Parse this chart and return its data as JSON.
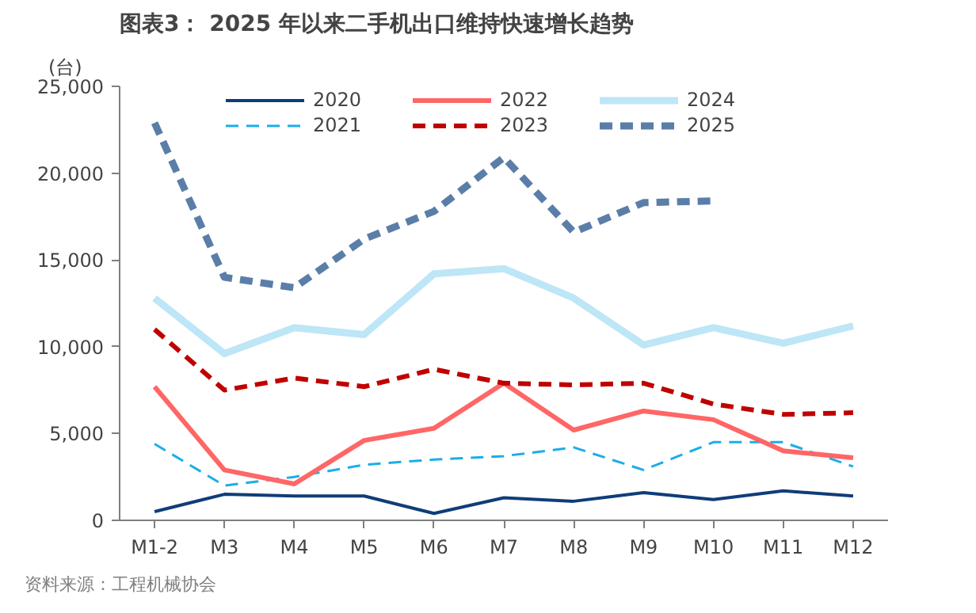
{
  "chart_data": {
    "type": "line",
    "title": "图表3： 2025 年以来二手机出口维持快速增长趋势",
    "ylabel": "(台)",
    "categories": [
      "M1-2",
      "M3",
      "M4",
      "M5",
      "M6",
      "M7",
      "M8",
      "M9",
      "M10",
      "M11",
      "M12"
    ],
    "ylim": [
      0,
      25000
    ],
    "yticks": [
      {
        "value": 0,
        "label": "0"
      },
      {
        "value": 5000,
        "label": "5,000"
      },
      {
        "value": 10000,
        "label": "10,000"
      },
      {
        "value": 15000,
        "label": "15,000"
      },
      {
        "value": 20000,
        "label": "20,000"
      },
      {
        "value": 25000,
        "label": "25,000"
      }
    ],
    "grid": false,
    "legend": "top",
    "annotations": [
      "资料来源：工程机械协会"
    ],
    "series": [
      {
        "name": "2020",
        "color": "#0f3d7a",
        "line_style": "solid",
        "values": [
          500,
          1500,
          1400,
          1400,
          400,
          1300,
          1100,
          1600,
          1200,
          1700,
          1400
        ]
      },
      {
        "name": "2021",
        "color": "#1aaee8",
        "line_style": "dashed",
        "values": [
          4400,
          2000,
          2500,
          3200,
          3500,
          3700,
          4200,
          2900,
          4500,
          4500,
          3100
        ]
      },
      {
        "name": "2022",
        "color": "#ff6666",
        "line_style": "solid",
        "values": [
          7700,
          2900,
          2100,
          4600,
          5300,
          7900,
          5200,
          6300,
          5800,
          4000,
          3600
        ]
      },
      {
        "name": "2023",
        "color": "#c00000",
        "line_style": "dashed",
        "values": [
          11000,
          7500,
          8200,
          7700,
          8700,
          7900,
          7800,
          7900,
          6700,
          6100,
          6200
        ]
      },
      {
        "name": "2024",
        "color": "#bde6f7",
        "line_style": "solid",
        "values": [
          12800,
          9600,
          11100,
          10700,
          14200,
          14500,
          12800,
          10100,
          11100,
          10200,
          11200
        ]
      },
      {
        "name": "2025",
        "color": "#5b7ea8",
        "line_style": "dashed",
        "values": [
          22900,
          14000,
          13400,
          16200,
          17800,
          20900,
          16600,
          18300,
          18400,
          null,
          null
        ]
      }
    ]
  }
}
